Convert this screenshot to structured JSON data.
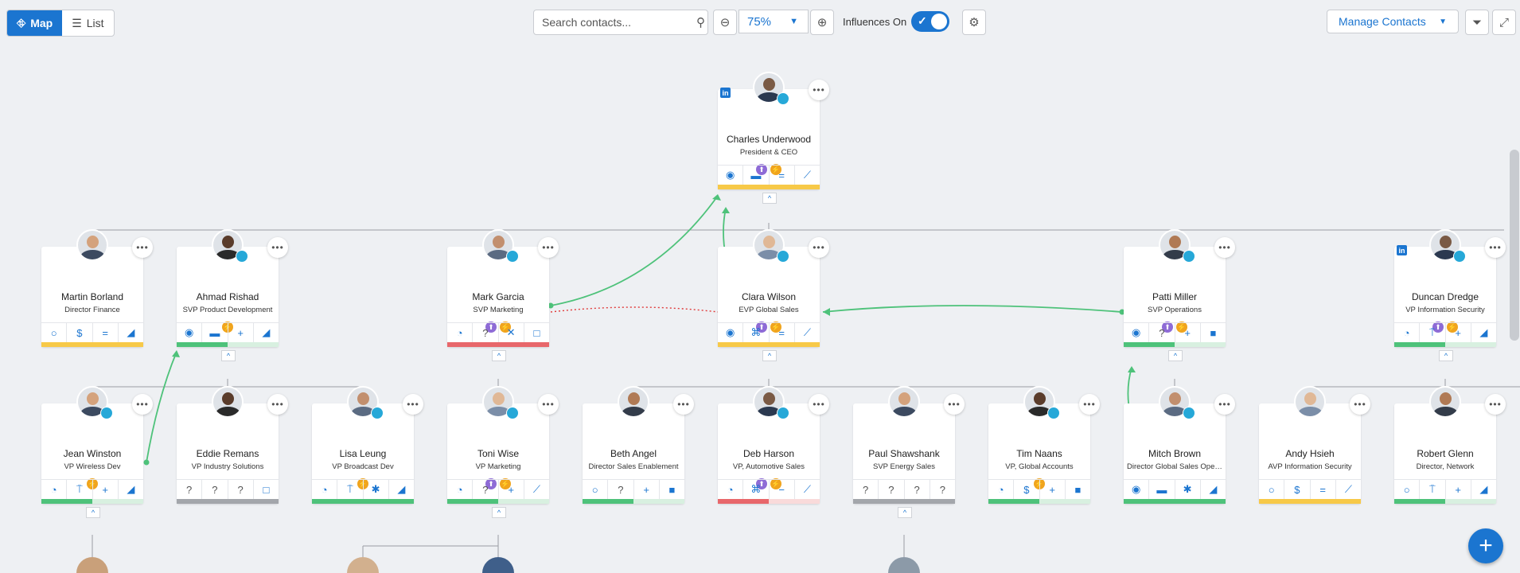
{
  "toolbar": {
    "view_map": "Map",
    "view_list": "List",
    "search_placeholder": "Search contacts...",
    "zoom": "75%",
    "influences_label": "Influences On",
    "manage_contacts": "Manage Contacts"
  },
  "colors": {
    "accent": "#1b75d0",
    "green": "#4ec27a",
    "yellow": "#f7c948",
    "red": "#e8676b",
    "gray": "#a3a6ab",
    "influence_line": "#4ec27a",
    "conflict_line": "#e03a3a"
  },
  "contacts": [
    {
      "id": "charles",
      "name": "Charles Underwood",
      "title": "President & CEO",
      "badges": [
        "purple",
        "orange"
      ],
      "actions": [
        "◉",
        "▬",
        "=",
        "⟋"
      ],
      "status": "yellow",
      "linkedin": true,
      "influencer": true
    },
    {
      "id": "martin",
      "name": "Martin Borland",
      "title": "Director Finance",
      "badges": [],
      "actions": [
        "○",
        "$",
        "=",
        "◢"
      ],
      "status": "yellow"
    },
    {
      "id": "ahmad",
      "name": "Ahmad Rishad",
      "title": "SVP Product Development",
      "badges": [
        "orange"
      ],
      "actions": [
        "◉",
        "▬",
        "+",
        "◢"
      ],
      "status": "green-half",
      "influencer": true
    },
    {
      "id": "mark",
      "name": "Mark Garcia",
      "title": "SVP Marketing",
      "badges": [
        "purple",
        "orange"
      ],
      "actions": [
        "◔",
        "?",
        "✕",
        "□"
      ],
      "status": "red",
      "influencer": true
    },
    {
      "id": "clara",
      "name": "Clara Wilson",
      "title": "EVP Global Sales",
      "badges": [
        "purple",
        "orange"
      ],
      "actions": [
        "◉",
        "⌘",
        "=",
        "⟋"
      ],
      "status": "yellow",
      "influencer": true
    },
    {
      "id": "patti",
      "name": "Patti Miller",
      "title": "SVP Operations",
      "badges": [
        "purple",
        "orange"
      ],
      "actions": [
        "◉",
        "?",
        "+",
        "■"
      ],
      "status": "green-half",
      "influencer": true
    },
    {
      "id": "duncan",
      "name": "Duncan Dredge",
      "title": "VP Information Security",
      "badges": [
        "purple",
        "orange"
      ],
      "actions": [
        "◔",
        "⍑",
        "+",
        "◢"
      ],
      "status": "green-half",
      "linkedin": true,
      "influencer": true
    },
    {
      "id": "jean",
      "name": "Jean Winston",
      "title": "VP Wireless Dev",
      "badges": [
        "orange"
      ],
      "actions": [
        "◔",
        "⍑",
        "+",
        "◢"
      ],
      "status": "green-half",
      "influencer": true
    },
    {
      "id": "eddie",
      "name": "Eddie Remans",
      "title": "VP Industry Solutions",
      "badges": [],
      "actions": [
        "?",
        "?",
        "?",
        "□"
      ],
      "status": "gray"
    },
    {
      "id": "lisa",
      "name": "Lisa Leung",
      "title": "VP Broadcast Dev",
      "badges": [
        "orange"
      ],
      "actions": [
        "◔",
        "⍑",
        "✱",
        "◢"
      ],
      "status": "green",
      "influencer": true
    },
    {
      "id": "toni",
      "name": "Toni Wise",
      "title": "VP Marketing",
      "badges": [
        "purple",
        "orange"
      ],
      "actions": [
        "◔",
        "?",
        "+",
        "⟋"
      ],
      "status": "green-half",
      "influencer": true
    },
    {
      "id": "beth",
      "name": "Beth Angel",
      "title": "Director Sales Enablement",
      "badges": [],
      "actions": [
        "○",
        "?",
        "+",
        "■"
      ],
      "status": "green-half"
    },
    {
      "id": "deb",
      "name": "Deb Harson",
      "title": "VP, Automotive Sales",
      "badges": [
        "purple",
        "orange"
      ],
      "actions": [
        "◔",
        "⌘",
        "−",
        "⟋"
      ],
      "status": "red-half",
      "influencer": true
    },
    {
      "id": "paul",
      "name": "Paul Shawshank",
      "title": "SVP Energy Sales",
      "badges": [],
      "actions": [
        "?",
        "?",
        "?",
        "?"
      ],
      "status": "gray"
    },
    {
      "id": "tim",
      "name": "Tim Naans",
      "title": "VP, Global Accounts",
      "badges": [
        "orange"
      ],
      "actions": [
        "◔",
        "$",
        "+",
        "■"
      ],
      "status": "green-half",
      "influencer": true
    },
    {
      "id": "mitch",
      "name": "Mitch Brown",
      "title": "Director Global Sales Opera...",
      "badges": [],
      "actions": [
        "◉",
        "▬",
        "✱",
        "◢"
      ],
      "status": "green",
      "influencer": true
    },
    {
      "id": "andy",
      "name": "Andy Hsieh",
      "title": "AVP Information Security",
      "badges": [],
      "actions": [
        "○",
        "$",
        "=",
        "⟋"
      ],
      "status": "yellow"
    },
    {
      "id": "robert",
      "name": "Robert Glenn",
      "title": "Director, Network",
      "badges": [],
      "actions": [
        "○",
        "⍑",
        "+",
        "◢"
      ],
      "status": "green-half"
    }
  ]
}
